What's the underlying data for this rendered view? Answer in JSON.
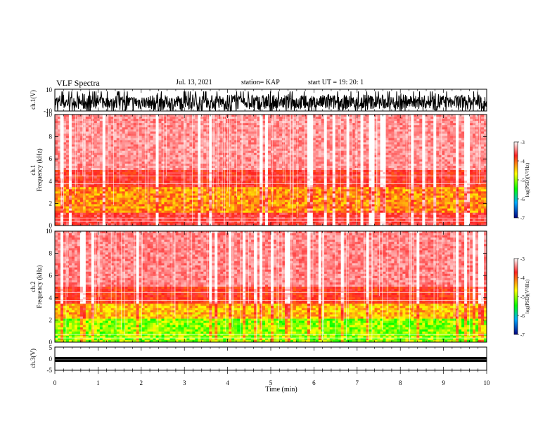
{
  "header": {
    "title": "VLF Spectra",
    "date": "Jul. 13, 2021",
    "station": "station= KAP",
    "start": "start UT =  19: 20: 1"
  },
  "chart_data": [
    {
      "type": "line",
      "id": "waveform-ch1",
      "ylabel": "ch.1(V)",
      "ylim": [
        -10,
        10
      ],
      "ytick_labels": [
        "10",
        "-10"
      ],
      "xlim": [
        0,
        10
      ],
      "series_color": "#000000"
    },
    {
      "type": "heatmap",
      "id": "spectrogram-ch1",
      "ylabel_top": "ch.1",
      "ylabel": "Frequency (kHz)",
      "ylim": [
        0,
        10
      ],
      "yticks": [
        0,
        2,
        4,
        6,
        8,
        10
      ],
      "xlim": [
        0,
        10
      ],
      "colorbar": {
        "label": "log(PSD)(V²/Hz)",
        "range": [
          -7,
          -3
        ],
        "tick_labels": [
          "-3",
          "-4",
          "-5",
          "-6",
          "-7"
        ],
        "colors": [
          "#ffffff",
          "#ff0000",
          "#ffff00",
          "#00ff00",
          "#00aaff",
          "#000080"
        ]
      }
    },
    {
      "type": "heatmap",
      "id": "spectrogram-ch2",
      "ylabel_top": "ch.2",
      "ylabel": "Frequency (kHz)",
      "ylim": [
        0,
        10
      ],
      "yticks": [
        0,
        2,
        4,
        6,
        8,
        10
      ],
      "xlim": [
        0,
        10
      ],
      "colorbar": {
        "label": "log(PSD)(V²/Hz)",
        "range": [
          -7,
          -3
        ],
        "tick_labels": [
          "-3",
          "-4",
          "-5",
          "-6",
          "-7"
        ],
        "colors": [
          "#ffffff",
          "#ff0000",
          "#ffff00",
          "#00ff00",
          "#00aaff",
          "#000080"
        ]
      }
    },
    {
      "type": "line",
      "id": "waveform-ch3",
      "ylabel": "ch.3(V)",
      "ylim": [
        -5,
        5
      ],
      "ytick_labels": [
        "5",
        "0",
        "-5"
      ],
      "xlim": [
        0,
        10
      ],
      "xlabel": "Time (min)",
      "xticks": [
        "0",
        "1",
        "2",
        "3",
        "4",
        "5",
        "6",
        "7",
        "8",
        "9",
        "10"
      ],
      "series_color": "#000000"
    }
  ]
}
